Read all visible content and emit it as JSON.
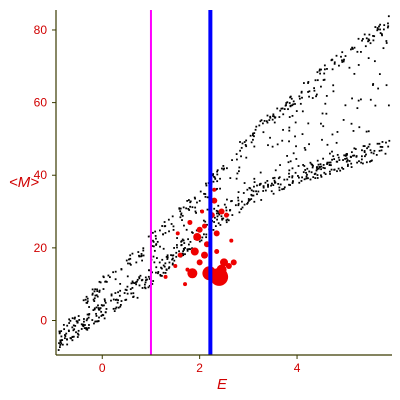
{
  "chart_data": {
    "type": "scatter",
    "title": "",
    "xlabel": "E",
    "ylabel": "<M>",
    "xlim": [
      -0.95,
      5.95
    ],
    "ylim": [
      -9.5,
      85.5
    ],
    "x_ticks": [
      0,
      2,
      4
    ],
    "x_tick_labels": [
      "0",
      "2",
      "4"
    ],
    "y_ticks": [
      0,
      20,
      40,
      60,
      80
    ],
    "y_tick_labels": [
      "0",
      "20",
      "40",
      "60",
      "80"
    ],
    "grid": false,
    "legend": "none",
    "colors": {
      "cloud": "#000000",
      "highlight": "#ee0000",
      "line_magenta": "#ff00ff",
      "line_blue": "#0000ff",
      "tick_text": "#d00000",
      "axis": "#3a3a00"
    },
    "reference_lines": [
      {
        "name": "vline-magenta",
        "x": 1.0,
        "color": "#ff00ff"
      },
      {
        "name": "vline-blue",
        "x": 2.22,
        "color": "#0000ff"
      }
    ],
    "series": [
      {
        "kind": "cloud",
        "band_lower": [
          [
            -0.9,
            -8
          ],
          [
            1.0,
            8
          ],
          [
            2.0,
            22
          ],
          [
            3.0,
            32
          ],
          [
            4.0,
            37
          ],
          [
            5.0,
            42
          ],
          [
            5.9,
            49
          ]
        ],
        "band_upper": [
          [
            -0.9,
            -3
          ],
          [
            0.0,
            12
          ],
          [
            1.0,
            24
          ],
          [
            2.0,
            36
          ],
          [
            3.0,
            52
          ],
          [
            4.0,
            64
          ],
          [
            5.0,
            75
          ],
          [
            5.9,
            84
          ]
        ],
        "dense_line": [
          [
            -0.9,
            -6
          ],
          [
            1.0,
            12
          ],
          [
            2.0,
            24
          ],
          [
            3.0,
            34
          ],
          [
            4.0,
            40
          ],
          [
            5.0,
            44
          ],
          [
            5.9,
            48
          ]
        ],
        "count": 900
      },
      {
        "kind": "highlight",
        "points": [
          {
            "x": 1.85,
            "y": 13,
            "r": 5
          },
          {
            "x": 1.9,
            "y": 19,
            "r": 4
          },
          {
            "x": 1.95,
            "y": 23,
            "r": 4
          },
          {
            "x": 2.0,
            "y": 25,
            "r": 3
          },
          {
            "x": 1.8,
            "y": 27,
            "r": 2.5
          },
          {
            "x": 2.1,
            "y": 18,
            "r": 3.5
          },
          {
            "x": 2.15,
            "y": 21,
            "r": 3
          },
          {
            "x": 2.2,
            "y": 13,
            "r": 7
          },
          {
            "x": 2.25,
            "y": 29,
            "r": 3
          },
          {
            "x": 2.3,
            "y": 33,
            "r": 3
          },
          {
            "x": 2.35,
            "y": 24,
            "r": 3
          },
          {
            "x": 2.4,
            "y": 12,
            "r": 9
          },
          {
            "x": 2.45,
            "y": 14,
            "r": 5
          },
          {
            "x": 2.5,
            "y": 16,
            "r": 4
          },
          {
            "x": 2.6,
            "y": 15,
            "r": 3
          },
          {
            "x": 2.7,
            "y": 16,
            "r": 3
          },
          {
            "x": 2.0,
            "y": 16,
            "r": 3
          },
          {
            "x": 1.6,
            "y": 18,
            "r": 2.5
          },
          {
            "x": 1.55,
            "y": 24,
            "r": 2
          },
          {
            "x": 1.7,
            "y": 10,
            "r": 2
          },
          {
            "x": 2.05,
            "y": 30,
            "r": 2
          },
          {
            "x": 2.45,
            "y": 30,
            "r": 3
          },
          {
            "x": 2.55,
            "y": 29,
            "r": 2.5
          },
          {
            "x": 2.3,
            "y": 36,
            "r": 2
          },
          {
            "x": 2.1,
            "y": 26,
            "r": 2.5
          },
          {
            "x": 1.75,
            "y": 14,
            "r": 2
          },
          {
            "x": 1.5,
            "y": 15,
            "r": 2
          },
          {
            "x": 1.3,
            "y": 12,
            "r": 2
          },
          {
            "x": 2.65,
            "y": 22,
            "r": 2
          },
          {
            "x": 2.35,
            "y": 19,
            "r": 2.5
          }
        ]
      }
    ]
  }
}
